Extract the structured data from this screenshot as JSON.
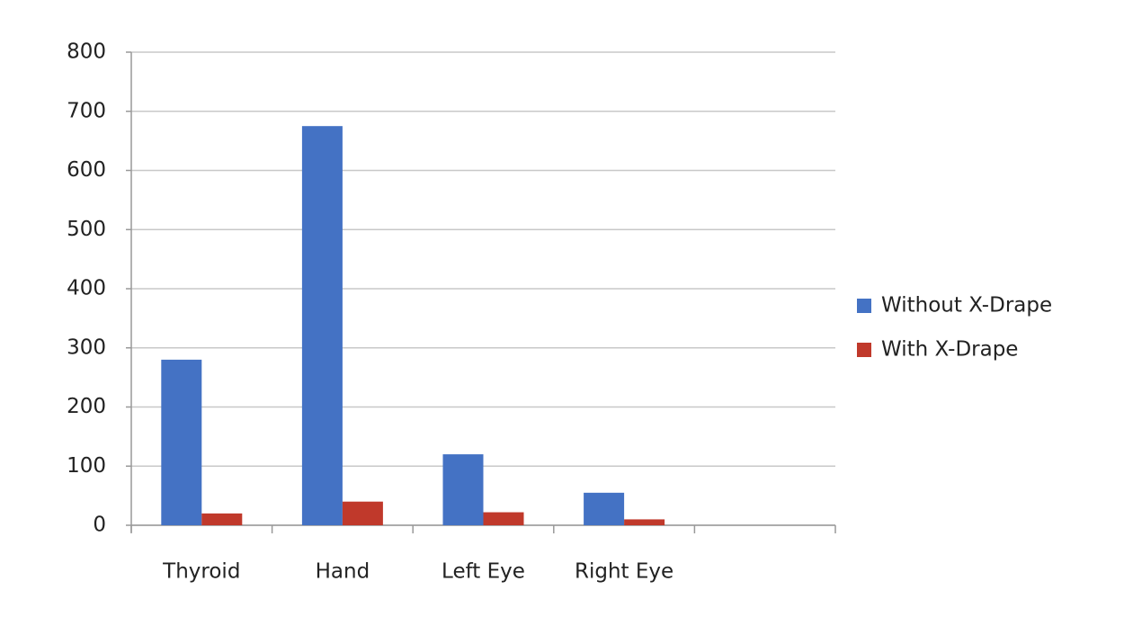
{
  "chart_data": {
    "type": "bar",
    "categories": [
      "Thyroid",
      "Hand",
      "Left Eye",
      "Right Eye",
      null
    ],
    "series": [
      {
        "name": "Without X-Drape",
        "color": "#4472c4",
        "values": [
          280,
          675,
          120,
          55,
          null
        ]
      },
      {
        "name": "With X-Drape",
        "color": "#c0392b",
        "values": [
          20,
          40,
          22,
          10,
          null
        ]
      }
    ],
    "ylim": [
      0,
      800
    ],
    "yticks": [
      0,
      100,
      200,
      300,
      400,
      500,
      600,
      700,
      800
    ],
    "grid": true,
    "legend": "right"
  }
}
